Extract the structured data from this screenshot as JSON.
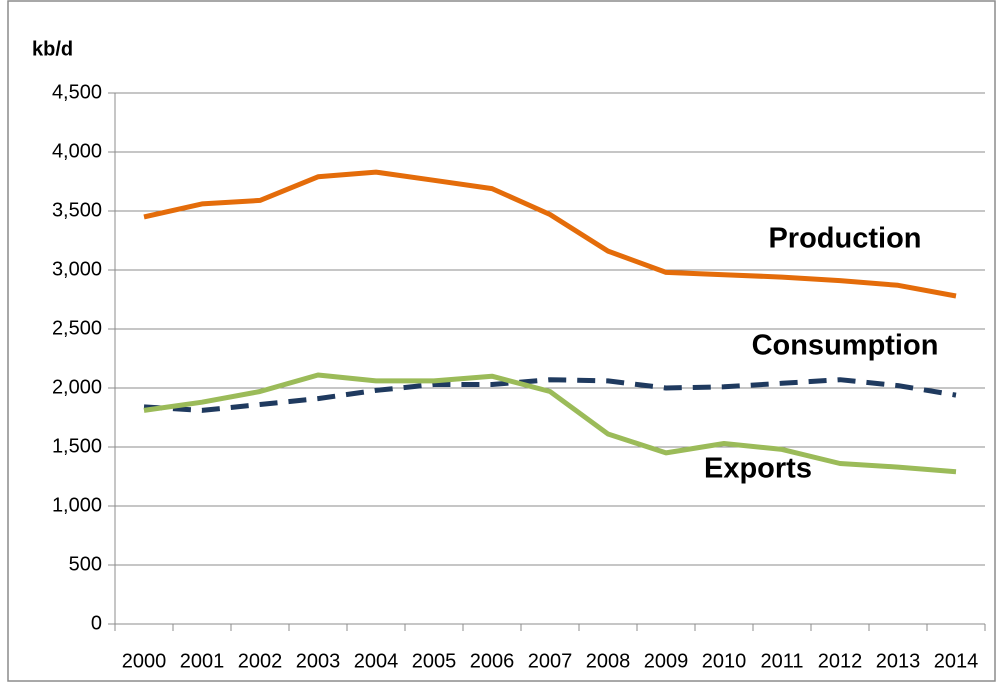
{
  "chart_data": {
    "type": "line",
    "y_label": "kb/d",
    "categories": [
      "2000",
      "2001",
      "2002",
      "2003",
      "2004",
      "2005",
      "2006",
      "2007",
      "2008",
      "2009",
      "2010",
      "2011",
      "2012",
      "2013",
      "2014"
    ],
    "series": [
      {
        "name": "Production",
        "color": "#e46c0a",
        "label_color": "#e46c0a",
        "dashed": false,
        "values": [
          3450,
          3560,
          3590,
          3790,
          3830,
          3760,
          3690,
          3470,
          3160,
          2980,
          2960,
          2940,
          2910,
          2870,
          2780
        ]
      },
      {
        "name": "Consumption",
        "color": "#1f3a5f",
        "label_color": "#254061",
        "dashed": true,
        "values": [
          1840,
          1810,
          1860,
          1910,
          1980,
          2030,
          2030,
          2070,
          2060,
          2000,
          2010,
          2040,
          2070,
          2020,
          1940
        ]
      },
      {
        "name": "Exports",
        "color": "#9bbb59",
        "label_color": "#77933c",
        "dashed": false,
        "values": [
          1810,
          1880,
          1970,
          2110,
          2060,
          2060,
          2100,
          1970,
          1610,
          1450,
          1530,
          1480,
          1360,
          1330,
          1290
        ]
      }
    ],
    "ylim": [
      0,
      4500
    ],
    "yticks": [
      0,
      500,
      {
        "value": 1000,
        "label": "1,000"
      },
      {
        "value": 1500,
        "label": "1,500"
      },
      {
        "value": 2000,
        "label": "2,000"
      },
      {
        "value": 2500,
        "label": "2,500"
      },
      {
        "value": 3000,
        "label": "3,000"
      },
      {
        "value": 3500,
        "label": "3,500"
      },
      {
        "value": 4000,
        "label": "4,000"
      },
      {
        "value": 4500,
        "label": "4,500"
      }
    ],
    "grid": true
  }
}
